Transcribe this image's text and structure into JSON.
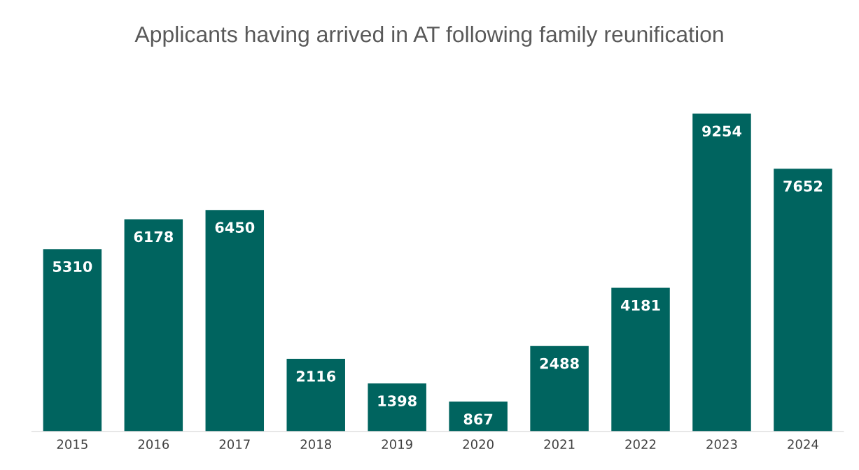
{
  "chart_data": {
    "type": "bar",
    "title": "Applicants having arrived in AT following family reunification",
    "categories": [
      "2015",
      "2016",
      "2017",
      "2018",
      "2019",
      "2020",
      "2021",
      "2022",
      "2023",
      "2024"
    ],
    "values": [
      5310,
      6178,
      6450,
      2116,
      1398,
      867,
      2488,
      4181,
      9254,
      7652
    ],
    "color": "#00645f",
    "data_labels": true,
    "tick_labels": "x",
    "grid": false,
    "legend": false
  }
}
